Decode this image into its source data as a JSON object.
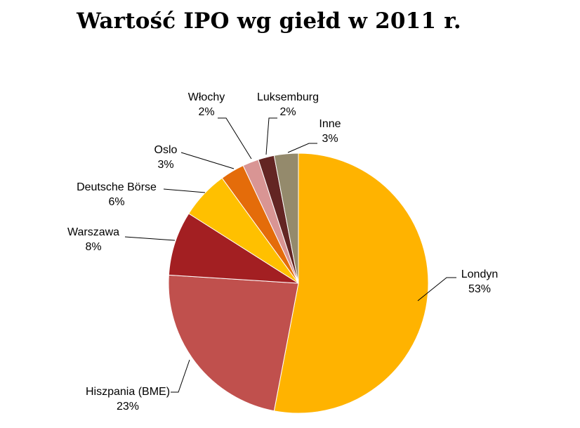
{
  "chart_data": {
    "type": "pie",
    "title": "Wartość IPO wg giełd w 2011 r.",
    "start_angle_deg": 0,
    "direction": "clockwise",
    "slices": [
      {
        "name": "Londyn",
        "value": 53,
        "percent_label": "53%",
        "color": "#FFB300"
      },
      {
        "name": "Hiszpania (BME)",
        "value": 23,
        "percent_label": "23%",
        "color": "#C0504D"
      },
      {
        "name": "Warszawa",
        "value": 8,
        "percent_label": "8%",
        "color": "#A31F22"
      },
      {
        "name": "Deutsche Börse",
        "value": 6,
        "percent_label": "6%",
        "color": "#FFC000"
      },
      {
        "name": "Oslo",
        "value": 3,
        "percent_label": "3%",
        "color": "#E46C0A"
      },
      {
        "name": "Włochy",
        "value": 2,
        "percent_label": "2%",
        "color": "#D99594"
      },
      {
        "name": "Luksemburg",
        "value": 2,
        "percent_label": "2%",
        "color": "#632523"
      },
      {
        "name": "Inne",
        "value": 3,
        "percent_label": "3%",
        "color": "#948A6C"
      }
    ]
  }
}
